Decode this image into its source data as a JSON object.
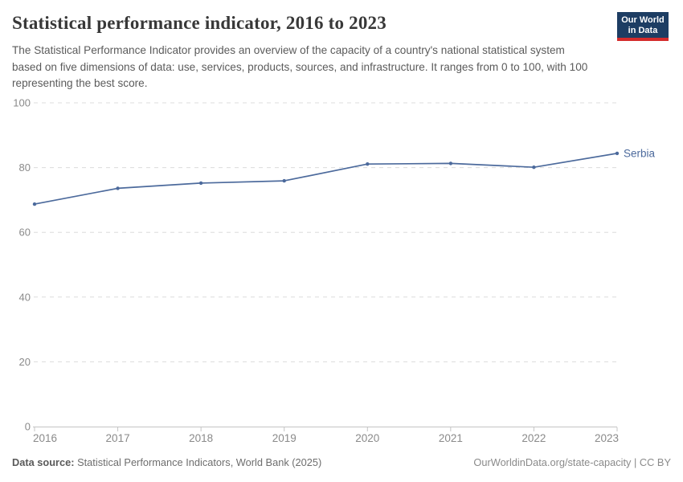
{
  "header": {
    "title": "Statistical performance indicator, 2016 to 2023",
    "subtitle": "The Statistical Performance Indicator provides an overview of the capacity of a country's national statistical system based on five dimensions of data: use, services, products, sources, and infrastructure. It ranges from 0 to 100, with 100 representing the best score.",
    "logo": {
      "line1": "Our World",
      "line2": "in Data"
    }
  },
  "chart_data": {
    "type": "line",
    "title": "Statistical performance indicator, 2016 to 2023",
    "x": [
      2016,
      2017,
      2018,
      2019,
      2020,
      2021,
      2022,
      2023
    ],
    "series": [
      {
        "name": "Serbia",
        "values": [
          68.7,
          73.6,
          75.2,
          75.9,
          81.1,
          81.3,
          80.1,
          84.4
        ]
      }
    ],
    "xlabel": "",
    "ylabel": "",
    "ylim": [
      0,
      100
    ],
    "yticks": [
      0,
      20,
      40,
      60,
      80,
      100
    ],
    "xticks": [
      2016,
      2017,
      2018,
      2019,
      2020,
      2021,
      2022,
      2023
    ],
    "grid": "horizontal-dashed",
    "legend_position": "end-of-line-label"
  },
  "colors": {
    "series_blue": "#4c6a9c",
    "logo_bg": "#1d3d63",
    "logo_accent": "#d42b2b",
    "gridline": "#dcdcdc",
    "axis_line": "#c4c4c4",
    "tick_label": "#8a8a8a",
    "title_text": "#383838",
    "subtitle_text": "#5b5b5b"
  },
  "footer": {
    "source_label": "Data source:",
    "source_text": " Statistical Performance Indicators, World Bank (2025)",
    "license_text": "OurWorldinData.org/state-capacity | CC BY"
  }
}
